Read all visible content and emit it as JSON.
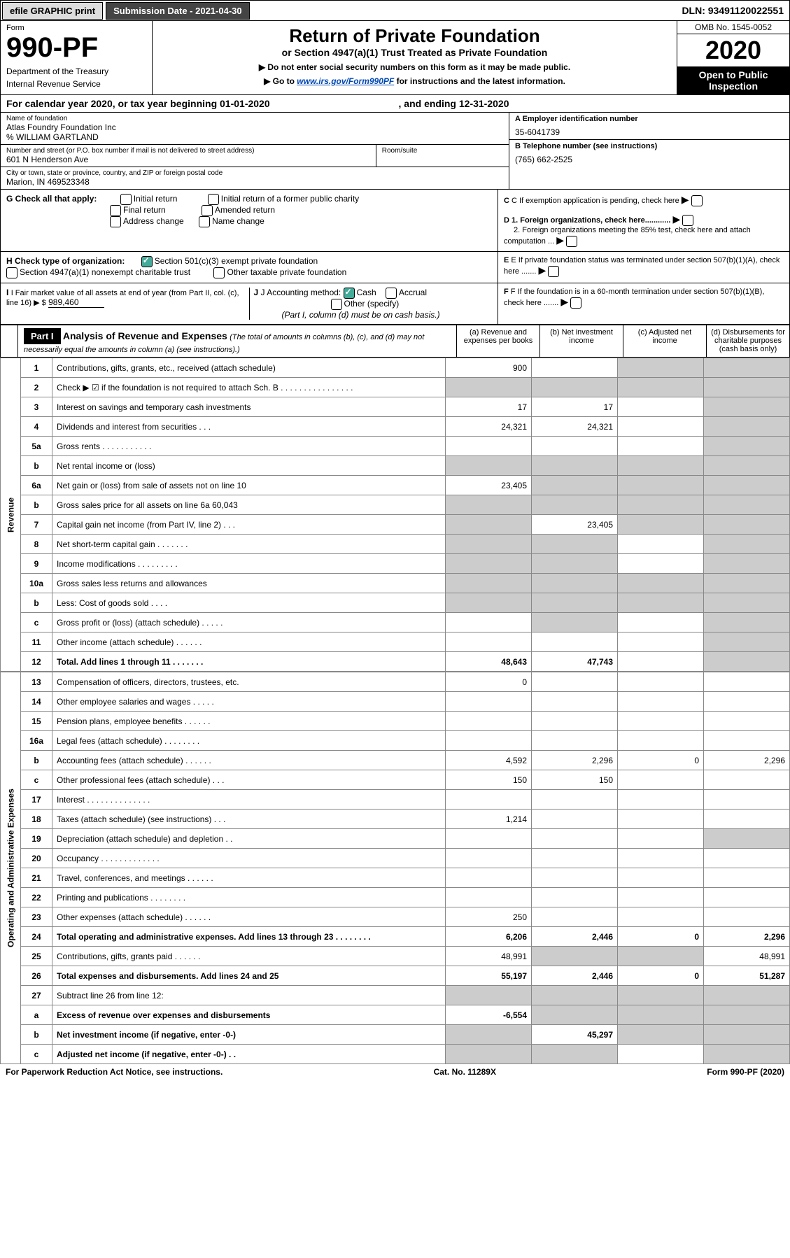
{
  "topbar": {
    "efile": "efile GRAPHIC print",
    "submission_label": "Submission Date",
    "submission_date": "2021-04-30",
    "dln_label": "DLN:",
    "dln": "93491120022551"
  },
  "header": {
    "form_label": "Form",
    "form_num": "990-PF",
    "dept": "Department of the Treasury",
    "irs": "Internal Revenue Service",
    "title": "Return of Private Foundation",
    "subtitle": "or Section 4947(a)(1) Trust Treated as Private Foundation",
    "note1": "▶ Do not enter social security numbers on this form as it may be made public.",
    "note2_pre": "▶ Go to ",
    "note2_link": "www.irs.gov/Form990PF",
    "note2_post": " for instructions and the latest information.",
    "omb": "OMB No. 1545-0052",
    "year": "2020",
    "open": "Open to Public Inspection"
  },
  "calyear": {
    "text_pre": "For calendar year 2020, or tax year beginning ",
    "begin": "01-01-2020",
    "text_mid": ", and ending ",
    "end": "12-31-2020"
  },
  "foundation": {
    "name_label": "Name of foundation",
    "name": "Atlas Foundry Foundation Inc",
    "care_of": "% WILLIAM GARTLAND",
    "addr_label": "Number and street (or P.O. box number if mail is not delivered to street address)",
    "addr": "601 N Henderson Ave",
    "room_label": "Room/suite",
    "city_label": "City or town, state or province, country, and ZIP or foreign postal code",
    "city": "Marion, IN  469523348",
    "ein_label": "A Employer identification number",
    "ein": "35-6041739",
    "phone_label": "B Telephone number (see instructions)",
    "phone": "(765) 662-2525",
    "c_label": "C If exemption application is pending, check here",
    "d1": "D 1. Foreign organizations, check here............",
    "d2": "2. Foreign organizations meeting the 85% test, check here and attach computation ...",
    "e_label": "E  If private foundation status was terminated under section 507(b)(1)(A), check here .......",
    "f_label": "F  If the foundation is in a 60-month termination under section 507(b)(1)(B), check here ......."
  },
  "g": {
    "label": "G Check all that apply:",
    "opts": [
      "Initial return",
      "Final return",
      "Address change",
      "Initial return of a former public charity",
      "Amended return",
      "Name change"
    ]
  },
  "h": {
    "label": "H Check type of organization:",
    "opt1": "Section 501(c)(3) exempt private foundation",
    "opt2": "Section 4947(a)(1) nonexempt charitable trust",
    "opt3": "Other taxable private foundation"
  },
  "i": {
    "label": "I Fair market value of all assets at end of year (from Part II, col. (c), line 16) ▶ $",
    "value": "989,460"
  },
  "j": {
    "label": "J Accounting method:",
    "cash": "Cash",
    "accrual": "Accrual",
    "other": "Other (specify)",
    "note": "(Part I, column (d) must be on cash basis.)"
  },
  "part1": {
    "label": "Part I",
    "title": "Analysis of Revenue and Expenses",
    "note": "(The total of amounts in columns (b), (c), and (d) may not necessarily equal the amounts in column (a) (see instructions).)",
    "col_a": "(a) Revenue and expenses per books",
    "col_b": "(b) Net investment income",
    "col_c": "(c) Adjusted net income",
    "col_d": "(d) Disbursements for charitable purposes (cash basis only)"
  },
  "side_labels": {
    "revenue": "Revenue",
    "expenses": "Operating and Administrative Expenses"
  },
  "lines": [
    {
      "num": "1",
      "desc": "Contributions, gifts, grants, etc., received (attach schedule)",
      "a": "900",
      "b": "",
      "c": "grey",
      "d": "grey"
    },
    {
      "num": "2",
      "desc": "Check ▶ ☑ if the foundation is not required to attach Sch. B   .  .  .  .  .  .  .  .  .  .  .  .  .  .  .  .",
      "a": "grey",
      "b": "grey",
      "c": "grey",
      "d": "grey"
    },
    {
      "num": "3",
      "desc": "Interest on savings and temporary cash investments",
      "a": "17",
      "b": "17",
      "c": "",
      "d": "grey"
    },
    {
      "num": "4",
      "desc": "Dividends and interest from securities   .  .  .",
      "a": "24,321",
      "b": "24,321",
      "c": "",
      "d": "grey"
    },
    {
      "num": "5a",
      "desc": "Gross rents   .  .  .  .  .  .  .  .  .  .  .",
      "a": "",
      "b": "",
      "c": "",
      "d": "grey"
    },
    {
      "num": "b",
      "desc": "Net rental income or (loss)  ",
      "a": "grey",
      "b": "grey",
      "c": "grey",
      "d": "grey"
    },
    {
      "num": "6a",
      "desc": "Net gain or (loss) from sale of assets not on line 10",
      "a": "23,405",
      "b": "grey",
      "c": "grey",
      "d": "grey"
    },
    {
      "num": "b",
      "desc": "Gross sales price for all assets on line 6a              60,043",
      "a": "grey",
      "b": "grey",
      "c": "grey",
      "d": "grey"
    },
    {
      "num": "7",
      "desc": "Capital gain net income (from Part IV, line 2)   .  .  .",
      "a": "grey",
      "b": "23,405",
      "c": "grey",
      "d": "grey"
    },
    {
      "num": "8",
      "desc": "Net short-term capital gain   .  .  .  .  .  .  .",
      "a": "grey",
      "b": "grey",
      "c": "",
      "d": "grey"
    },
    {
      "num": "9",
      "desc": "Income modifications   .  .  .  .  .  .  .  .  .",
      "a": "grey",
      "b": "grey",
      "c": "",
      "d": "grey"
    },
    {
      "num": "10a",
      "desc": "Gross sales less returns and allowances",
      "a": "grey",
      "b": "grey",
      "c": "grey",
      "d": "grey"
    },
    {
      "num": "b",
      "desc": "Less: Cost of goods sold   .  .  .  .",
      "a": "grey",
      "b": "grey",
      "c": "grey",
      "d": "grey"
    },
    {
      "num": "c",
      "desc": "Gross profit or (loss) (attach schedule)   .  .  .  .  .",
      "a": "",
      "b": "grey",
      "c": "",
      "d": "grey"
    },
    {
      "num": "11",
      "desc": "Other income (attach schedule)   .  .  .  .  .  .",
      "a": "",
      "b": "",
      "c": "",
      "d": "grey"
    },
    {
      "num": "12",
      "desc": "Total. Add lines 1 through 11   .  .  .  .  .  .  .",
      "a": "48,643",
      "b": "47,743",
      "c": "",
      "d": "grey",
      "bold": true
    }
  ],
  "exp_lines": [
    {
      "num": "13",
      "desc": "Compensation of officers, directors, trustees, etc.",
      "a": "0",
      "b": "",
      "c": "",
      "d": ""
    },
    {
      "num": "14",
      "desc": "Other employee salaries and wages   .  .  .  .  .",
      "a": "",
      "b": "",
      "c": "",
      "d": ""
    },
    {
      "num": "15",
      "desc": "Pension plans, employee benefits   .  .  .  .  .  .",
      "a": "",
      "b": "",
      "c": "",
      "d": ""
    },
    {
      "num": "16a",
      "desc": "Legal fees (attach schedule)   .  .  .  .  .  .  .  .",
      "a": "",
      "b": "",
      "c": "",
      "d": ""
    },
    {
      "num": "b",
      "desc": "Accounting fees (attach schedule)   .  .  .  .  .  .",
      "a": "4,592",
      "b": "2,296",
      "c": "0",
      "d": "2,296"
    },
    {
      "num": "c",
      "desc": "Other professional fees (attach schedule)   .  .  .",
      "a": "150",
      "b": "150",
      "c": "",
      "d": ""
    },
    {
      "num": "17",
      "desc": "Interest   .  .  .  .  .  .  .  .  .  .  .  .  .  .",
      "a": "",
      "b": "",
      "c": "",
      "d": ""
    },
    {
      "num": "18",
      "desc": "Taxes (attach schedule) (see instructions)   .  .  .",
      "a": "1,214",
      "b": "",
      "c": "",
      "d": ""
    },
    {
      "num": "19",
      "desc": "Depreciation (attach schedule) and depletion   .  .",
      "a": "",
      "b": "",
      "c": "",
      "d": "grey"
    },
    {
      "num": "20",
      "desc": "Occupancy   .  .  .  .  .  .  .  .  .  .  .  .  .",
      "a": "",
      "b": "",
      "c": "",
      "d": ""
    },
    {
      "num": "21",
      "desc": "Travel, conferences, and meetings   .  .  .  .  .  .",
      "a": "",
      "b": "",
      "c": "",
      "d": ""
    },
    {
      "num": "22",
      "desc": "Printing and publications   .  .  .  .  .  .  .  .",
      "a": "",
      "b": "",
      "c": "",
      "d": ""
    },
    {
      "num": "23",
      "desc": "Other expenses (attach schedule)   .  .  .  .  .  .",
      "a": "250",
      "b": "",
      "c": "",
      "d": ""
    },
    {
      "num": "24",
      "desc": "Total operating and administrative expenses. Add lines 13 through 23   .  .  .  .  .  .  .  .",
      "a": "6,206",
      "b": "2,446",
      "c": "0",
      "d": "2,296",
      "bold": true
    },
    {
      "num": "25",
      "desc": "Contributions, gifts, grants paid   .  .  .  .  .  .",
      "a": "48,991",
      "b": "grey",
      "c": "grey",
      "d": "48,991"
    },
    {
      "num": "26",
      "desc": "Total expenses and disbursements. Add lines 24 and 25",
      "a": "55,197",
      "b": "2,446",
      "c": "0",
      "d": "51,287",
      "bold": true
    },
    {
      "num": "27",
      "desc": "Subtract line 26 from line 12:",
      "a": "grey",
      "b": "grey",
      "c": "grey",
      "d": "grey"
    },
    {
      "num": "a",
      "desc": "Excess of revenue over expenses and disbursements",
      "a": "-6,554",
      "b": "grey",
      "c": "grey",
      "d": "grey",
      "bold": true
    },
    {
      "num": "b",
      "desc": "Net investment income (if negative, enter -0-)",
      "a": "grey",
      "b": "45,297",
      "c": "grey",
      "d": "grey",
      "bold": true
    },
    {
      "num": "c",
      "desc": "Adjusted net income (if negative, enter -0-)   .  .",
      "a": "grey",
      "b": "grey",
      "c": "",
      "d": "grey",
      "bold": true
    }
  ],
  "footer": {
    "left": "For Paperwork Reduction Act Notice, see instructions.",
    "mid": "Cat. No. 11289X",
    "right": "Form 990-PF (2020)"
  }
}
